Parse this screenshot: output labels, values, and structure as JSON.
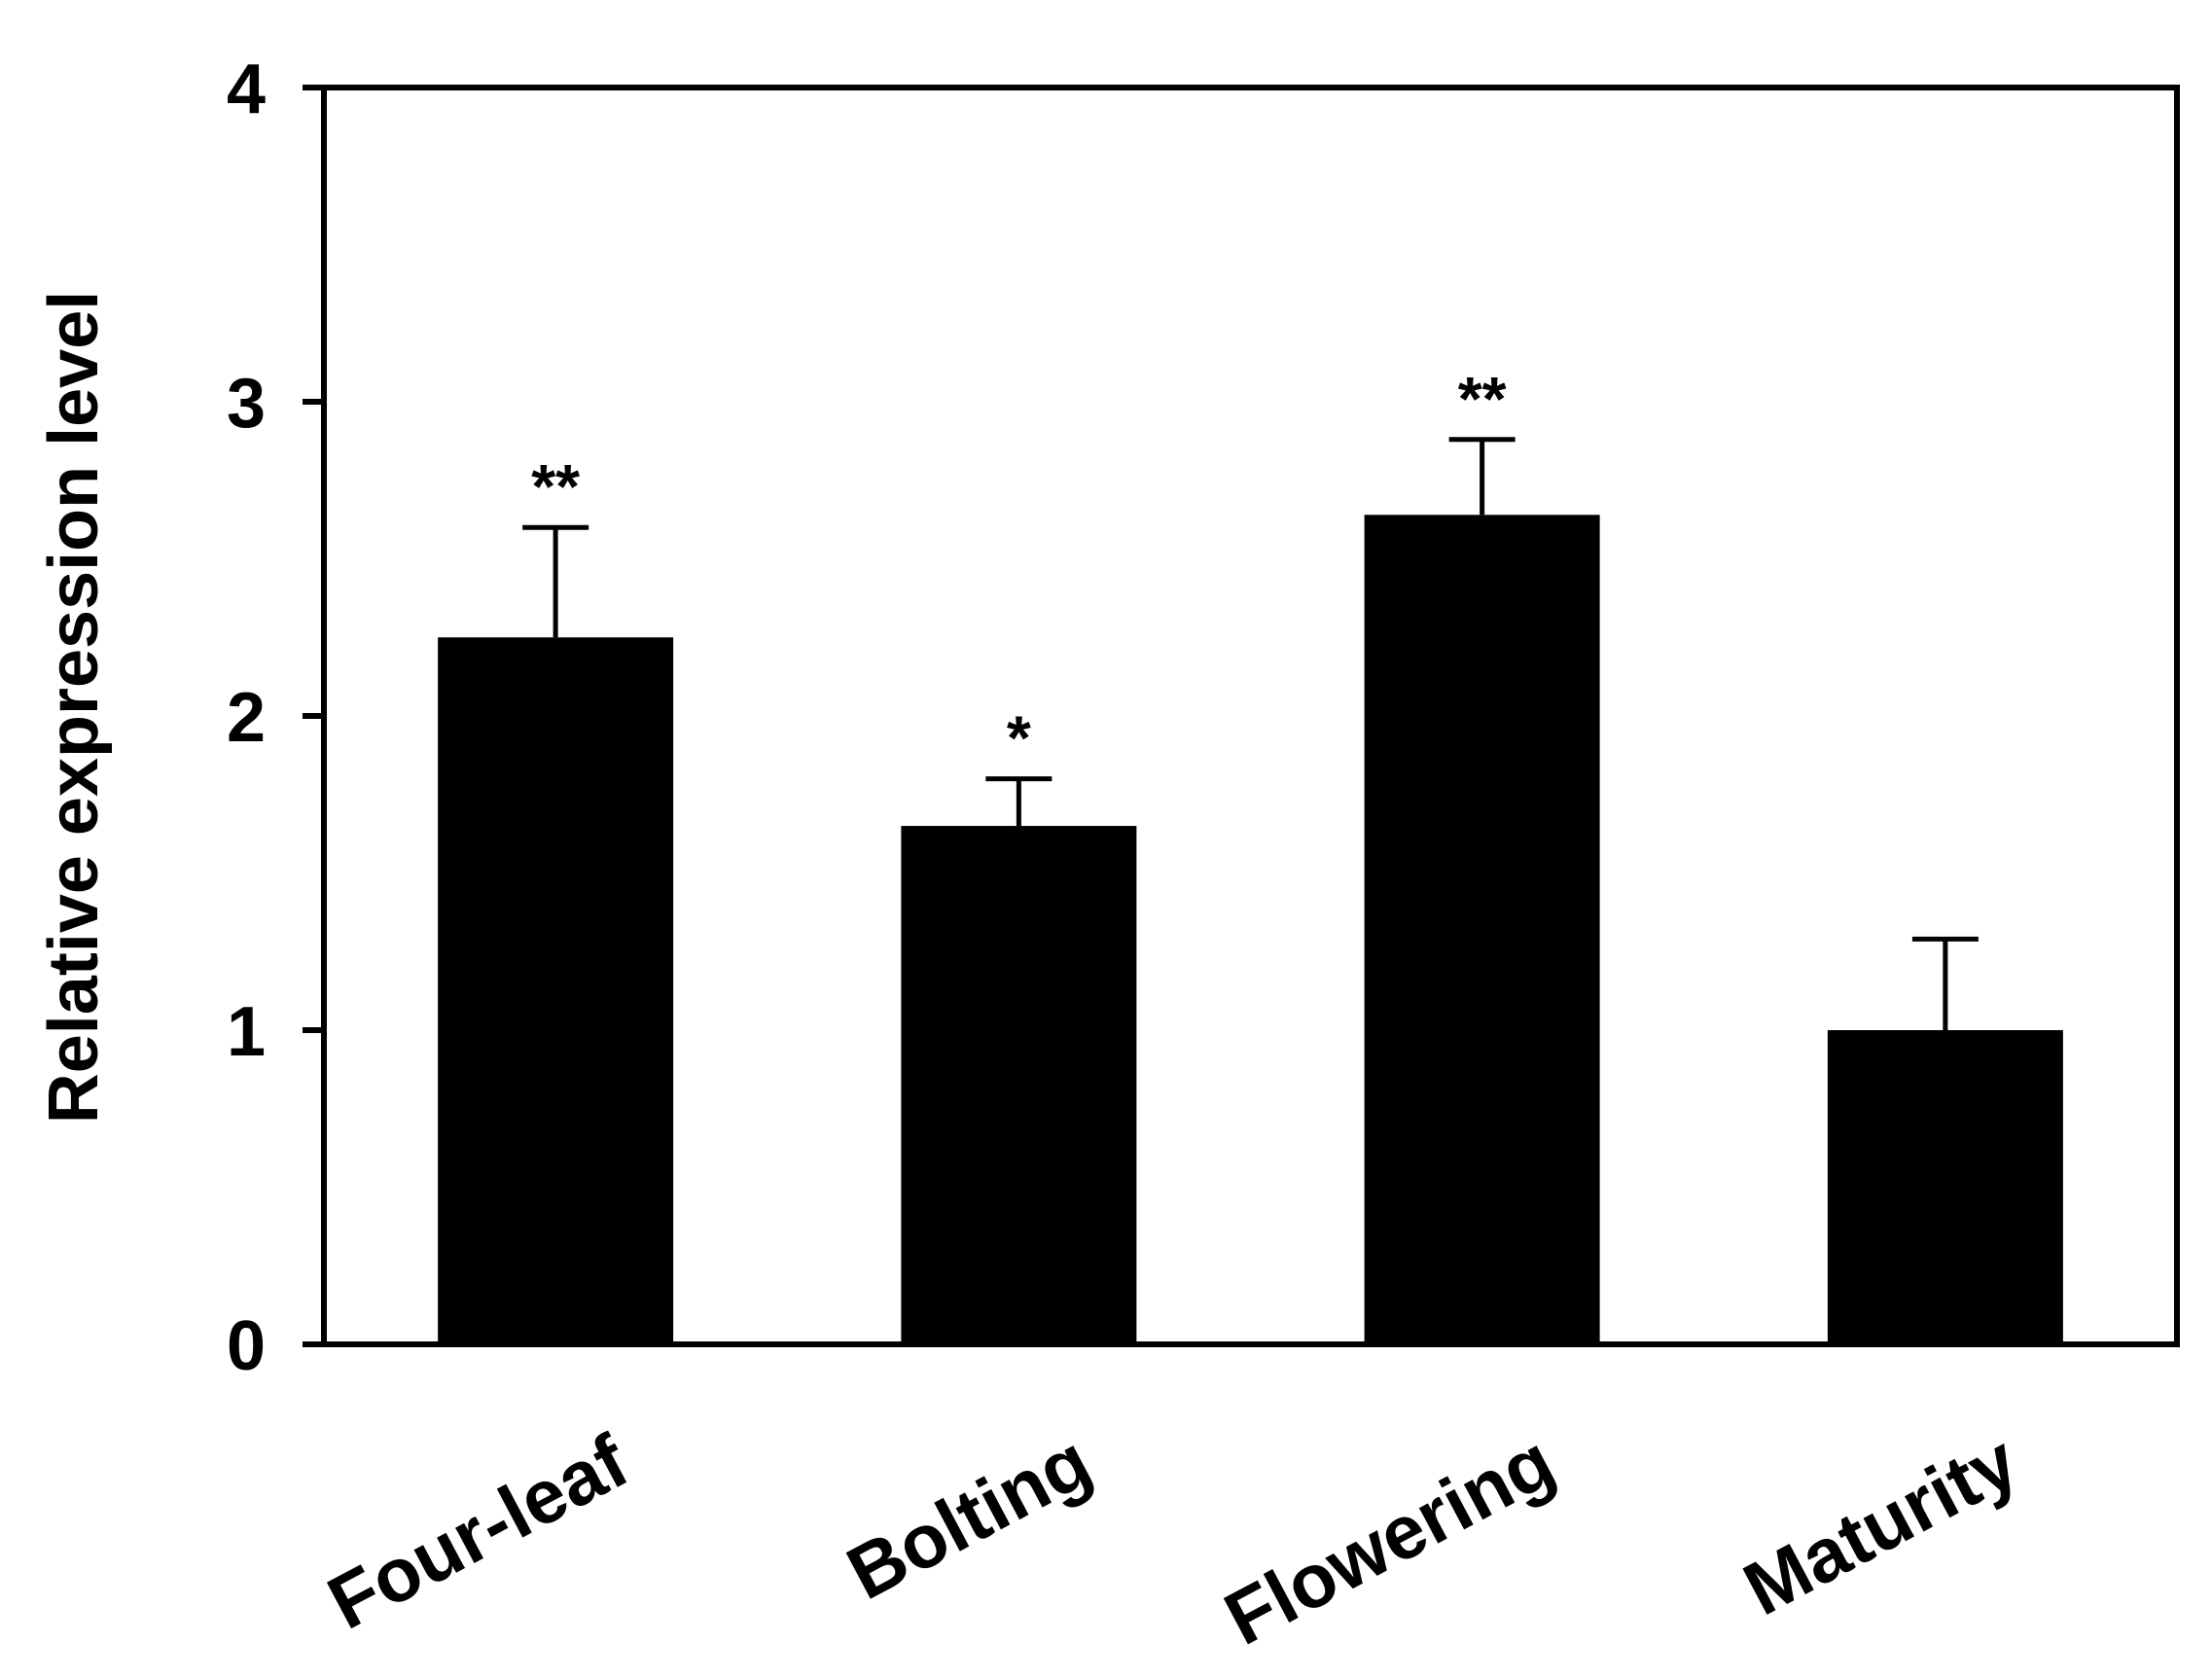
{
  "chart_data": {
    "type": "bar",
    "title": "",
    "xlabel": "",
    "ylabel": "Relative expression level",
    "categories": [
      "Four-leaf",
      "Bolting",
      "Flowering",
      "Maturity"
    ],
    "values": [
      2.25,
      1.65,
      2.64,
      1.0
    ],
    "errors": [
      0.35,
      0.15,
      0.24,
      0.29
    ],
    "significance": [
      "**",
      "*",
      "**",
      ""
    ],
    "ylim": [
      0,
      4
    ],
    "yticks": [
      0,
      1,
      2,
      3,
      4
    ],
    "ytick_labels": [
      "0",
      "1",
      "2",
      "3",
      "4"
    ],
    "grid": false,
    "legend": "none",
    "colors": {
      "bar": "#000000",
      "axis": "#000000",
      "background": "#ffffff"
    }
  }
}
